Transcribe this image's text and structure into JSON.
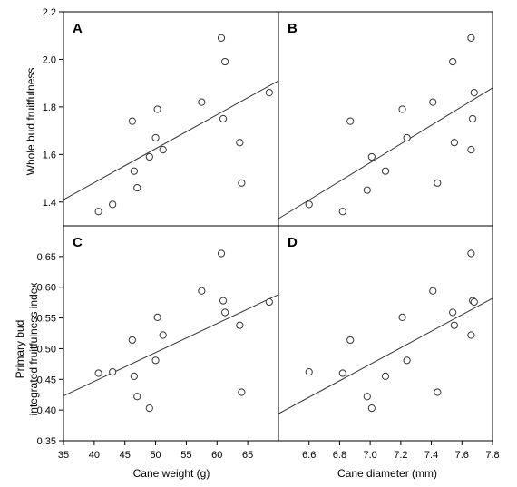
{
  "figure": {
    "x_axis_titles": {
      "left": "Cane weight (g)",
      "right": "Cane diameter (mm)"
    },
    "y_axis_titles": {
      "top": [
        "Whole bud fruitfulness"
      ],
      "bottom": [
        "Primary bud",
        "integrated fruitfulness index"
      ]
    }
  },
  "chart_data": [
    {
      "panel": "A",
      "type": "scatter",
      "xlabel": "Cane weight (g)",
      "ylabel": "Whole bud fruitfulness",
      "xlim": [
        35,
        70
      ],
      "ylim": [
        1.3,
        2.2
      ],
      "y_ticks": [
        "1.4",
        "1.6",
        "1.8",
        "2.0",
        "2.2"
      ],
      "points": [
        [
          40.7,
          1.36
        ],
        [
          43.0,
          1.39
        ],
        [
          46.2,
          1.74
        ],
        [
          46.5,
          1.53
        ],
        [
          47.0,
          1.46
        ],
        [
          49.0,
          1.59
        ],
        [
          50.0,
          1.67
        ],
        [
          50.3,
          1.79
        ],
        [
          51.2,
          1.62
        ],
        [
          57.5,
          1.82
        ],
        [
          60.7,
          2.09
        ],
        [
          61.0,
          1.75
        ],
        [
          61.3,
          1.99
        ],
        [
          63.7,
          1.65
        ],
        [
          64.0,
          1.48
        ],
        [
          68.5,
          1.86
        ]
      ],
      "trendline": {
        "x": [
          35,
          70
        ],
        "y": [
          1.41,
          1.91
        ]
      }
    },
    {
      "panel": "B",
      "type": "scatter",
      "xlabel": "Cane diameter (mm)",
      "ylabel": "Whole bud fruitfulness",
      "xlim": [
        6.4,
        7.8
      ],
      "ylim": [
        1.3,
        2.2
      ],
      "points": [
        [
          6.6,
          1.39
        ],
        [
          6.82,
          1.36
        ],
        [
          6.87,
          1.74
        ],
        [
          6.98,
          1.45
        ],
        [
          7.01,
          1.59
        ],
        [
          7.1,
          1.53
        ],
        [
          7.21,
          1.79
        ],
        [
          7.24,
          1.67
        ],
        [
          7.41,
          1.82
        ],
        [
          7.44,
          1.48
        ],
        [
          7.54,
          1.99
        ],
        [
          7.55,
          1.65
        ],
        [
          7.66,
          1.62
        ],
        [
          7.66,
          2.09
        ],
        [
          7.67,
          1.75
        ],
        [
          7.68,
          1.86
        ]
      ],
      "trendline": {
        "x": [
          6.4,
          7.8
        ],
        "y": [
          1.33,
          1.88
        ]
      }
    },
    {
      "panel": "C",
      "type": "scatter",
      "xlabel": "Cane weight (g)",
      "ylabel": "Primary bud integrated fruitfulness index",
      "xlim": [
        35,
        70
      ],
      "ylim": [
        0.35,
        0.7
      ],
      "x_ticks": [
        "35",
        "40",
        "45",
        "50",
        "55",
        "60",
        "65"
      ],
      "y_ticks": [
        "0.35",
        "0.40",
        "0.45",
        "0.50",
        "0.55",
        "0.60",
        "0.65"
      ],
      "points": [
        [
          40.7,
          0.46
        ],
        [
          43.0,
          0.462
        ],
        [
          46.2,
          0.514
        ],
        [
          46.5,
          0.455
        ],
        [
          47.0,
          0.422
        ],
        [
          49.0,
          0.403
        ],
        [
          50.0,
          0.481
        ],
        [
          50.3,
          0.551
        ],
        [
          51.2,
          0.522
        ],
        [
          57.5,
          0.594
        ],
        [
          60.7,
          0.655
        ],
        [
          61.0,
          0.578
        ],
        [
          61.3,
          0.559
        ],
        [
          63.7,
          0.538
        ],
        [
          64.0,
          0.429
        ],
        [
          68.5,
          0.576
        ]
      ],
      "trendline": {
        "x": [
          35,
          70
        ],
        "y": [
          0.423,
          0.588
        ]
      }
    },
    {
      "panel": "D",
      "type": "scatter",
      "xlabel": "Cane diameter (mm)",
      "ylabel": "Primary bud integrated fruitfulness index",
      "xlim": [
        6.4,
        7.8
      ],
      "ylim": [
        0.35,
        0.7
      ],
      "x_ticks": [
        "6.6",
        "6.8",
        "7.0",
        "7.2",
        "7.4",
        "7.6",
        "7.8"
      ],
      "points": [
        [
          6.6,
          0.462
        ],
        [
          6.82,
          0.46
        ],
        [
          6.87,
          0.514
        ],
        [
          6.98,
          0.422
        ],
        [
          7.01,
          0.403
        ],
        [
          7.1,
          0.455
        ],
        [
          7.21,
          0.551
        ],
        [
          7.24,
          0.481
        ],
        [
          7.41,
          0.594
        ],
        [
          7.44,
          0.429
        ],
        [
          7.54,
          0.559
        ],
        [
          7.55,
          0.538
        ],
        [
          7.66,
          0.522
        ],
        [
          7.66,
          0.655
        ],
        [
          7.67,
          0.578
        ],
        [
          7.68,
          0.576
        ]
      ],
      "trendline": {
        "x": [
          6.4,
          7.8
        ],
        "y": [
          0.394,
          0.582
        ]
      }
    }
  ]
}
